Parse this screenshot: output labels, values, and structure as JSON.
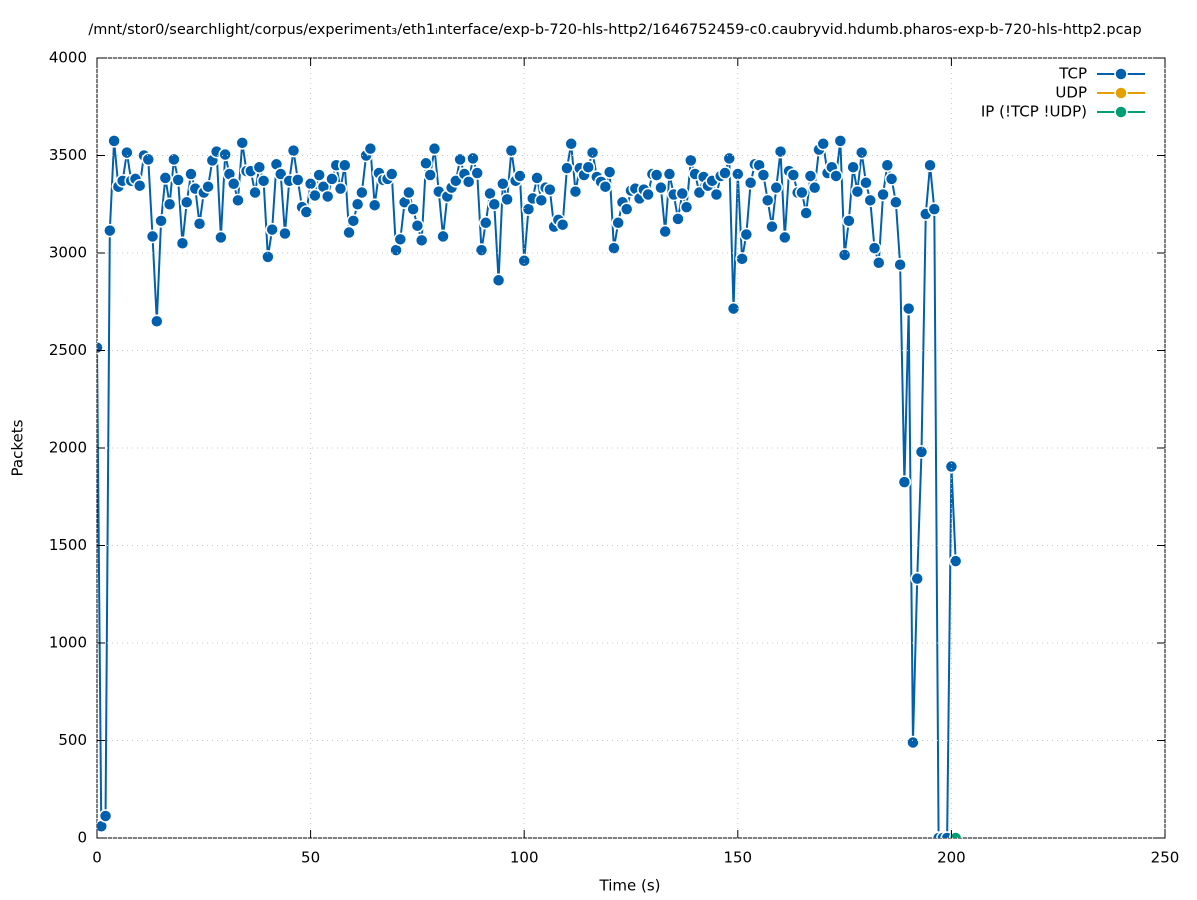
{
  "chart_data": {
    "type": "line",
    "title": "/mnt/stor0/searchlight/corpus/experiment₃/eth1ᵢnterface/exp-b-720-hls-http2/1646752459-c0.caubryvid.hdumb.pharos-exp-b-720-hls-http2.pcap",
    "x_label": "Time (s)",
    "y_label": "Packets",
    "xlim": [
      0,
      250
    ],
    "xticks": [
      0,
      50,
      100,
      150,
      200,
      250
    ],
    "ylim": [
      0,
      4000
    ],
    "yticks": [
      0,
      500,
      1000,
      1500,
      2000,
      2500,
      3000,
      3500,
      4000
    ],
    "grid": true,
    "legend": "top-right",
    "series": [
      {
        "name": "TCP",
        "color": "#0060ad",
        "x": [
          0,
          1,
          2,
          3,
          4,
          5,
          6,
          7,
          8,
          9,
          10,
          11,
          12,
          13,
          14,
          15,
          16,
          17,
          18,
          19,
          20,
          21,
          22,
          23,
          24,
          25,
          26,
          27,
          28,
          29,
          30,
          31,
          32,
          33,
          34,
          35,
          36,
          37,
          38,
          39,
          40,
          41,
          42,
          43,
          44,
          45,
          46,
          47,
          48,
          49,
          50,
          51,
          52,
          53,
          54,
          55,
          56,
          57,
          58,
          59,
          60,
          61,
          62,
          63,
          64,
          65,
          66,
          67,
          68,
          69,
          70,
          71,
          72,
          73,
          74,
          75,
          76,
          77,
          78,
          79,
          80,
          81,
          82,
          83,
          84,
          85,
          86,
          87,
          88,
          89,
          90,
          91,
          92,
          93,
          94,
          95,
          96,
          97,
          98,
          99,
          100,
          101,
          102,
          103,
          104,
          105,
          106,
          107,
          108,
          109,
          110,
          111,
          112,
          113,
          114,
          115,
          116,
          117,
          118,
          119,
          120,
          121,
          122,
          123,
          124,
          125,
          126,
          127,
          128,
          129,
          130,
          131,
          132,
          133,
          134,
          135,
          136,
          137,
          138,
          139,
          140,
          141,
          142,
          143,
          144,
          145,
          146,
          147,
          148,
          149,
          150,
          151,
          152,
          153,
          154,
          155,
          156,
          157,
          158,
          159,
          160,
          161,
          162,
          163,
          164,
          165,
          166,
          167,
          168,
          169,
          170,
          171,
          172,
          173,
          174,
          175,
          176,
          177,
          178,
          179,
          180,
          181,
          182,
          183,
          184,
          185,
          186,
          187,
          188,
          189,
          190,
          191,
          192,
          193,
          194,
          195,
          196,
          197,
          198,
          199,
          200,
          201
        ],
        "values": [
          2515,
          60,
          113,
          3115,
          3575,
          3340,
          3370,
          3515,
          3370,
          3380,
          3345,
          3500,
          3480,
          3085,
          2650,
          3165,
          3385,
          3250,
          3480,
          3375,
          3050,
          3260,
          3405,
          3330,
          3150,
          3310,
          3340,
          3475,
          3520,
          3080,
          3505,
          3405,
          3355,
          3270,
          3565,
          3420,
          3420,
          3310,
          3440,
          3370,
          2980,
          3120,
          3455,
          3405,
          3100,
          3370,
          3525,
          3375,
          3235,
          3210,
          3355,
          3295,
          3400,
          3340,
          3290,
          3380,
          3450,
          3330,
          3450,
          3105,
          3165,
          3250,
          3310,
          3500,
          3535,
          3245,
          3410,
          3375,
          3380,
          3405,
          3015,
          3070,
          3260,
          3310,
          3225,
          3140,
          3065,
          3460,
          3400,
          3535,
          3315,
          3085,
          3290,
          3335,
          3370,
          3480,
          3405,
          3365,
          3485,
          3410,
          3015,
          3155,
          3305,
          3250,
          2860,
          3355,
          3275,
          3525,
          3370,
          3395,
          2960,
          3225,
          3280,
          3385,
          3270,
          3335,
          3325,
          3135,
          3170,
          3145,
          3435,
          3560,
          3315,
          3435,
          3400,
          3440,
          3515,
          3390,
          3365,
          3340,
          3415,
          3025,
          3155,
          3260,
          3225,
          3320,
          3330,
          3280,
          3325,
          3300,
          3405,
          3400,
          3335,
          3110,
          3405,
          3300,
          3175,
          3305,
          3235,
          3475,
          3405,
          3310,
          3390,
          3345,
          3370,
          3300,
          3395,
          3410,
          3485,
          2715,
          3405,
          2970,
          3095,
          3360,
          3455,
          3450,
          3400,
          3270,
          3135,
          3335,
          3520,
          3080,
          3420,
          3400,
          3310,
          3310,
          3205,
          3395,
          3335,
          3530,
          3560,
          3410,
          3440,
          3395,
          3575,
          2990,
          3165,
          3440,
          3315,
          3515,
          3360,
          3270,
          3025,
          2950,
          3300,
          3450,
          3380,
          3260,
          2940,
          1825,
          2715,
          490,
          1330,
          1980,
          3200,
          3450,
          3225,
          0,
          0,
          0,
          1905,
          1420
        ]
      },
      {
        "name": "UDP",
        "color": "#e69f00",
        "x": [
          201
        ],
        "values": [
          0
        ]
      },
      {
        "name": "IP (!TCP  !UDP)",
        "color": "#009e73",
        "x": [
          201
        ],
        "values": [
          0
        ]
      }
    ]
  }
}
